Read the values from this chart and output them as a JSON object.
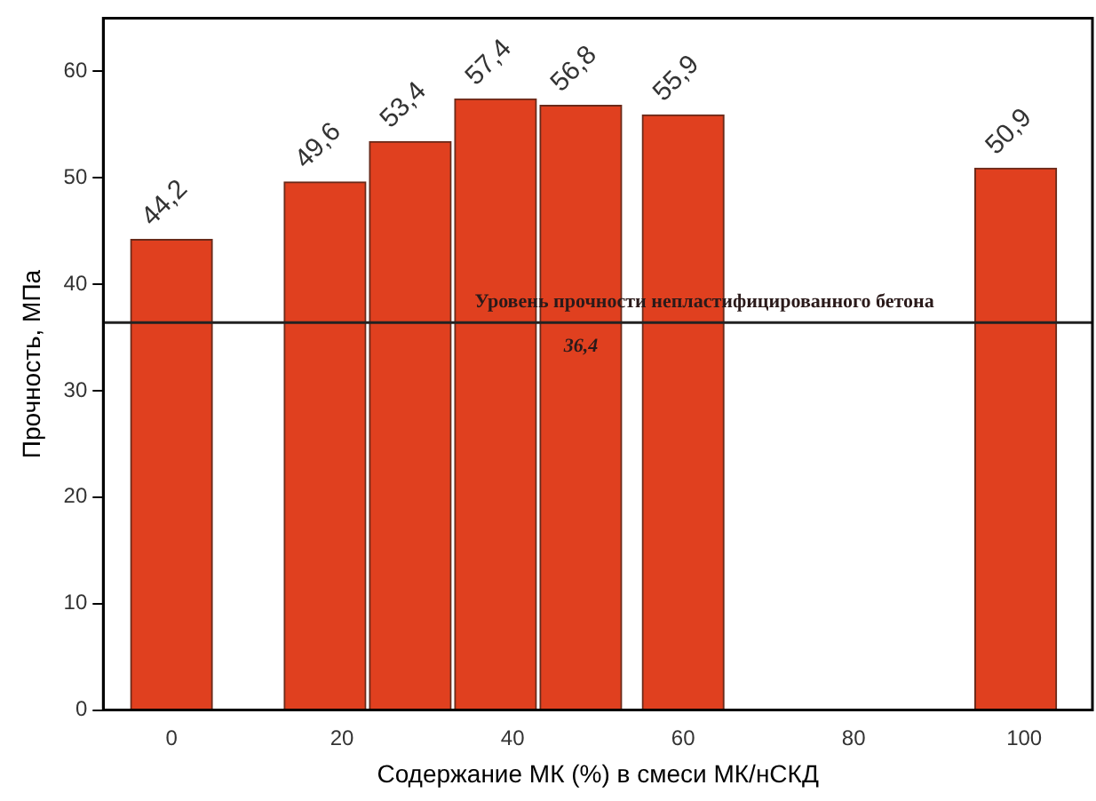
{
  "chart_data": {
    "type": "bar",
    "xlabel": "Содержание МК (%) в смеси МК/нСКД",
    "ylabel": "Прочность, МПа",
    "x": [
      0,
      18,
      28,
      38,
      48,
      60,
      99
    ],
    "values": [
      44.2,
      49.6,
      53.4,
      57.4,
      56.8,
      55.9,
      50.9
    ],
    "value_labels": [
      "44,2",
      "49,6",
      "53,4",
      "57,4",
      "56,8",
      "55,9",
      "50,9"
    ],
    "color": "#e0401f",
    "xlim": [
      -8,
      108
    ],
    "xticks": [
      0,
      20,
      40,
      60,
      80,
      100
    ],
    "ylim": [
      0,
      65
    ],
    "yticks": [
      0,
      10,
      20,
      30,
      40,
      50,
      60
    ],
    "grid": false,
    "legend": false,
    "ref_lines": [
      {
        "axis": "y",
        "value": 36.4,
        "label": "Уровень прочности непластифицированного бетона",
        "color": "#222222"
      }
    ],
    "annotations": [
      {
        "text": "36,4",
        "x": 48,
        "y": 36.4
      }
    ]
  }
}
